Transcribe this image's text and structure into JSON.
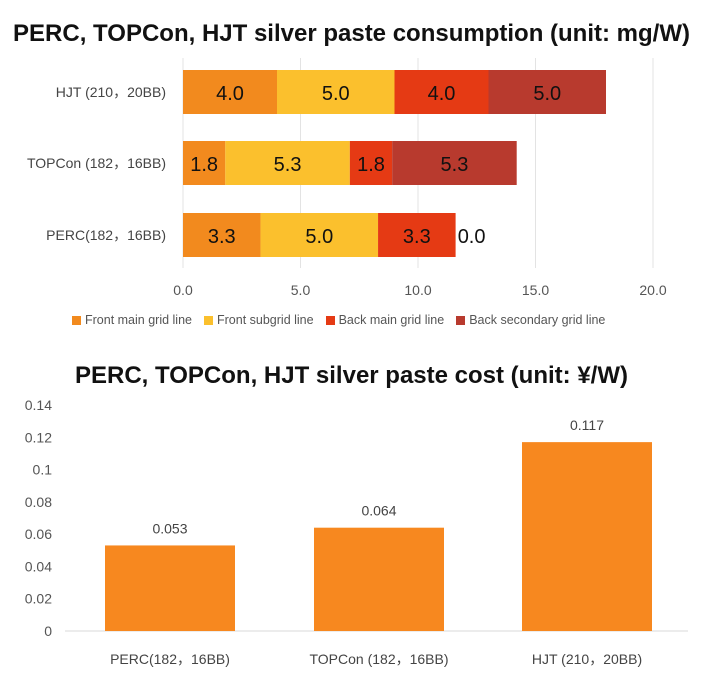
{
  "charts": {
    "consumption_title": "PERC, TOPCon, HJT silver paste consumption (unit: mg/W)",
    "cost_title": "PERC, TOPCon, HJT silver paste cost (unit: ¥/W)"
  },
  "colors": {
    "front_main": "#F28A1E",
    "front_sub": "#FBC02D",
    "back_main": "#E53A14",
    "back_secondary": "#B83A2E",
    "cost_bar": "#F7881F"
  },
  "chart_data": [
    {
      "type": "bar",
      "orientation": "horizontal",
      "stacked": true,
      "title": "PERC, TOPCon, HJT silver paste consumption (unit: mg/W)",
      "categories": [
        "HJT (210，20BB)",
        "TOPCon (182，16BB)",
        "PERC(182，16BB)"
      ],
      "series": [
        {
          "name": "Front main grid line",
          "values": [
            4.0,
            1.8,
            3.3
          ],
          "labels": [
            "4.0",
            "1.8",
            "3.3"
          ]
        },
        {
          "name": "Front subgrid line",
          "values": [
            5.0,
            5.3,
            5.0
          ],
          "labels": [
            "5.0",
            "5.3",
            "5.0"
          ]
        },
        {
          "name": "Back main grid line",
          "values": [
            4.0,
            1.8,
            3.3
          ],
          "labels": [
            "4.0",
            "1.8",
            "3.3"
          ]
        },
        {
          "name": "Back secondary grid line",
          "values": [
            5.0,
            5.3,
            0.0
          ],
          "labels": [
            "5.0",
            "5.3",
            "0.0"
          ]
        }
      ],
      "xlim": [
        0,
        20
      ],
      "xticks": [
        "0.0",
        "5.0",
        "10.0",
        "15.0",
        "20.0"
      ],
      "grid": true,
      "legend": "bottom"
    },
    {
      "type": "bar",
      "title": "PERC, TOPCon, HJT silver paste cost (unit: ¥/W)",
      "categories": [
        "PERC(182，16BB)",
        "TOPCon (182，16BB)",
        "HJT (210，20BB)"
      ],
      "values": [
        0.053,
        0.064,
        0.117
      ],
      "labels": [
        "0.053",
        "0.064",
        "0.117"
      ],
      "ylim": [
        0,
        0.14
      ],
      "yticks": [
        "0",
        "0.02",
        "0.04",
        "0.06",
        "0.08",
        "0.1",
        "0.12",
        "0.14"
      ],
      "grid": false
    }
  ]
}
